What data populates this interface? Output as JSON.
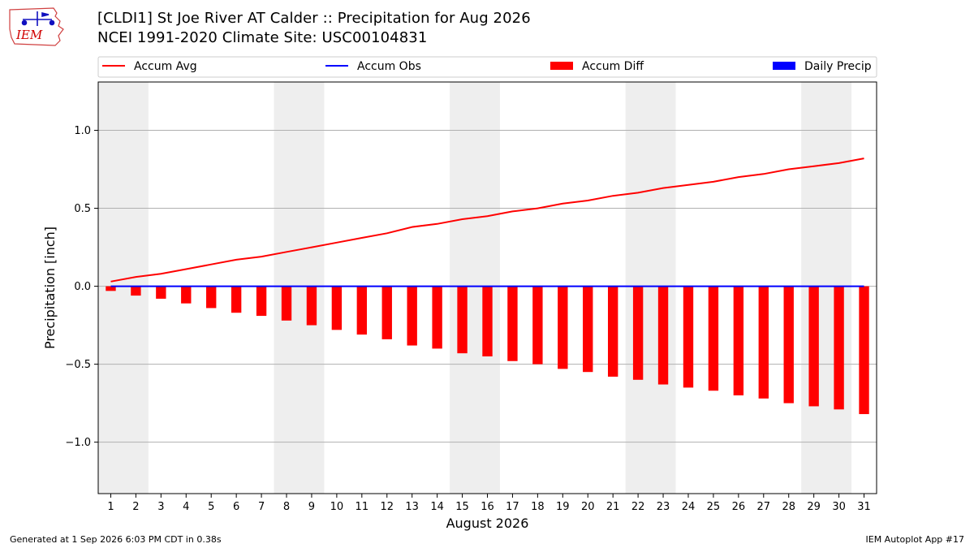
{
  "header": {
    "title_line1": "[CLDI1] St Joe River  AT Calder :: Precipitation for Aug 2026",
    "title_line2": "NCEI 1991-2020 Climate Site: USC00104831",
    "logo_text": "IEM"
  },
  "footer": {
    "generated": "Generated at 1 Sep 2026 6:03 PM CDT in 0.38s",
    "app": "IEM Autoplot App #17"
  },
  "colors": {
    "accum_avg": "#ff0000",
    "accum_obs": "#0000ff",
    "accum_diff": "#ff0000",
    "daily_precip": "#0000ff",
    "weekend_shade": "#eeeeee",
    "grid": "#b0b0b0"
  },
  "chart_data": {
    "type": "bar",
    "xlabel": "August 2026",
    "ylabel": "Precipitation [inch]",
    "ylim": [
      -1.33,
      1.31
    ],
    "yticks": [
      -1.0,
      -0.5,
      0.0,
      0.5,
      1.0
    ],
    "ytick_labels": [
      "−1.0",
      "−0.5",
      "0.0",
      "0.5",
      "1.0"
    ],
    "grid": true,
    "legend_position": "top",
    "legend": [
      "Accum Avg",
      "Accum Obs",
      "Accum Diff",
      "Daily Precip"
    ],
    "x": [
      1,
      2,
      3,
      4,
      5,
      6,
      7,
      8,
      9,
      10,
      11,
      12,
      13,
      14,
      15,
      16,
      17,
      18,
      19,
      20,
      21,
      22,
      23,
      24,
      25,
      26,
      27,
      28,
      29,
      30,
      31
    ],
    "shaded_day_ranges": [
      [
        1,
        2
      ],
      [
        8,
        9
      ],
      [
        15,
        16
      ],
      [
        22,
        23
      ],
      [
        29,
        30
      ]
    ],
    "series": [
      {
        "name": "Accum Avg",
        "type": "line",
        "values": [
          0.03,
          0.06,
          0.08,
          0.11,
          0.14,
          0.17,
          0.19,
          0.22,
          0.25,
          0.28,
          0.31,
          0.34,
          0.38,
          0.4,
          0.43,
          0.45,
          0.48,
          0.5,
          0.53,
          0.55,
          0.58,
          0.6,
          0.63,
          0.65,
          0.67,
          0.7,
          0.72,
          0.75,
          0.77,
          0.79,
          0.82
        ]
      },
      {
        "name": "Accum Obs",
        "type": "line",
        "values": [
          0,
          0,
          0,
          0,
          0,
          0,
          0,
          0,
          0,
          0,
          0,
          0,
          0,
          0,
          0,
          0,
          0,
          0,
          0,
          0,
          0,
          0,
          0,
          0,
          0,
          0,
          0,
          0,
          0,
          0,
          0
        ]
      },
      {
        "name": "Accum Diff",
        "type": "bar",
        "values": [
          -0.03,
          -0.06,
          -0.08,
          -0.11,
          -0.14,
          -0.17,
          -0.19,
          -0.22,
          -0.25,
          -0.28,
          -0.31,
          -0.34,
          -0.38,
          -0.4,
          -0.43,
          -0.45,
          -0.48,
          -0.5,
          -0.53,
          -0.55,
          -0.58,
          -0.6,
          -0.63,
          -0.65,
          -0.67,
          -0.7,
          -0.72,
          -0.75,
          -0.77,
          -0.79,
          -0.82
        ]
      },
      {
        "name": "Daily Precip",
        "type": "bar",
        "values": [
          0,
          0,
          0,
          0,
          0,
          0,
          0,
          0,
          0,
          0,
          0,
          0,
          0,
          0,
          0,
          0,
          0,
          0,
          0,
          0,
          0,
          0,
          0,
          0,
          0,
          0,
          0,
          0,
          0,
          0,
          0
        ]
      }
    ]
  }
}
